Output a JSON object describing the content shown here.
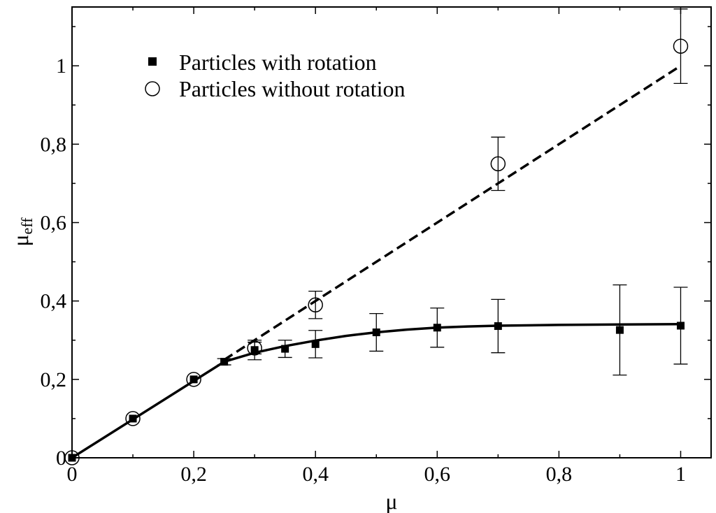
{
  "chart_data": {
    "type": "scatter",
    "title": "",
    "xlabel": "μ",
    "ylabel_main": "μ",
    "ylabel_sub": "eff",
    "xlim": [
      0,
      1.05
    ],
    "ylim": [
      0,
      1.15
    ],
    "x_ticks": [
      0,
      0.2,
      0.4,
      0.6,
      0.8,
      1
    ],
    "x_tick_labels": [
      "0",
      "0,2",
      "0,4",
      "0,6",
      "0,8",
      "1"
    ],
    "y_ticks": [
      0,
      0.2,
      0.4,
      0.6,
      0.8,
      1
    ],
    "y_tick_labels": [
      "0",
      "0,2",
      "0,4",
      "0,6",
      "0,8",
      "1"
    ],
    "grid": false,
    "legend_position": "top-left",
    "series": [
      {
        "name": "Particles with rotation",
        "marker": "filled-square",
        "x": [
          0,
          0.1,
          0.2,
          0.25,
          0.3,
          0.35,
          0.4,
          0.5,
          0.6,
          0.7,
          0.9,
          1.0
        ],
        "y": [
          0,
          0.1,
          0.2,
          0.245,
          0.275,
          0.278,
          0.29,
          0.32,
          0.332,
          0.336,
          0.326,
          0.337
        ],
        "err": [
          0,
          0,
          0,
          0.008,
          0.025,
          0.022,
          0.035,
          0.048,
          0.05,
          0.068,
          0.115,
          0.098
        ]
      },
      {
        "name": "Particles without rotation",
        "marker": "open-circle",
        "x": [
          0,
          0.1,
          0.2,
          0.3,
          0.4,
          0.7,
          1.0
        ],
        "y": [
          0,
          0.1,
          0.2,
          0.28,
          0.39,
          0.75,
          1.05
        ],
        "err": [
          0,
          0,
          0,
          0.015,
          0.035,
          0.068,
          0.095
        ]
      }
    ],
    "lines": [
      {
        "name": "fit-with-rotation",
        "style": "solid",
        "x": [
          0,
          0.25,
          0.3,
          0.35,
          0.4,
          0.45,
          0.5,
          0.55,
          0.6,
          0.65,
          0.7,
          0.8,
          0.9,
          1.0
        ],
        "y": [
          0,
          0.245,
          0.268,
          0.285,
          0.299,
          0.311,
          0.32,
          0.327,
          0.332,
          0.335,
          0.337,
          0.339,
          0.34,
          0.341
        ]
      },
      {
        "name": "fit-without-rotation",
        "style": "dashed",
        "x": [
          0.25,
          1.0
        ],
        "y": [
          0.25,
          1.0
        ]
      }
    ]
  }
}
